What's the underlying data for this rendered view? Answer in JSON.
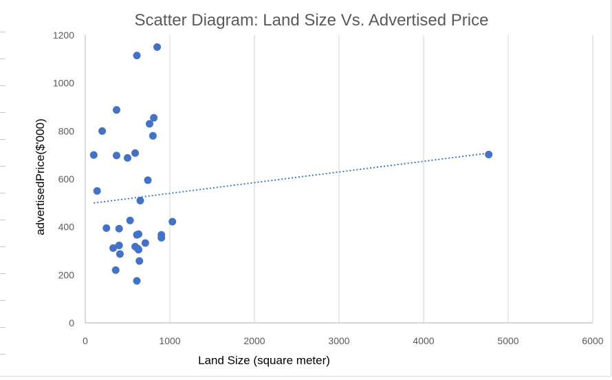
{
  "chart_data": {
    "type": "scatter",
    "title": "Scatter Diagram: Land Size Vs. Advertised Price",
    "xlabel": "Land Size (square meter)",
    "ylabel": "advertisedPrice($'000)",
    "xlim": [
      0,
      6000
    ],
    "ylim": [
      0,
      1200
    ],
    "x_ticks": [
      0,
      1000,
      2000,
      3000,
      4000,
      5000,
      6000
    ],
    "y_ticks": [
      0,
      200,
      400,
      600,
      800,
      1000,
      1200
    ],
    "x_tick_labels": [
      "0",
      "1000",
      "2000",
      "3000",
      "4000",
      "5000",
      "6000"
    ],
    "y_tick_labels": [
      "0",
      "200",
      "400",
      "600",
      "800",
      "1000",
      "1200"
    ],
    "grid": {
      "vertical": true,
      "horizontal": false
    },
    "legend": "none",
    "marker_color": "#4472c4",
    "trendline": {
      "type": "linear",
      "style": "dotted",
      "color": "#4472c4",
      "x_start": 100,
      "y_start": 500,
      "x_end": 4770,
      "y_end": 708
    },
    "series": [
      {
        "name": "advertised price",
        "points": [
          {
            "x": 100,
            "y": 700
          },
          {
            "x": 140,
            "y": 550
          },
          {
            "x": 200,
            "y": 800
          },
          {
            "x": 250,
            "y": 395
          },
          {
            "x": 330,
            "y": 312
          },
          {
            "x": 360,
            "y": 220
          },
          {
            "x": 370,
            "y": 888
          },
          {
            "x": 370,
            "y": 698
          },
          {
            "x": 400,
            "y": 393
          },
          {
            "x": 400,
            "y": 323
          },
          {
            "x": 410,
            "y": 287
          },
          {
            "x": 500,
            "y": 688
          },
          {
            "x": 530,
            "y": 427
          },
          {
            "x": 590,
            "y": 708
          },
          {
            "x": 590,
            "y": 318
          },
          {
            "x": 610,
            "y": 175
          },
          {
            "x": 610,
            "y": 367
          },
          {
            "x": 610,
            "y": 1115
          },
          {
            "x": 620,
            "y": 310
          },
          {
            "x": 630,
            "y": 305
          },
          {
            "x": 630,
            "y": 370
          },
          {
            "x": 640,
            "y": 258
          },
          {
            "x": 650,
            "y": 510
          },
          {
            "x": 710,
            "y": 333
          },
          {
            "x": 740,
            "y": 595
          },
          {
            "x": 760,
            "y": 830
          },
          {
            "x": 800,
            "y": 780
          },
          {
            "x": 810,
            "y": 855
          },
          {
            "x": 850,
            "y": 1150
          },
          {
            "x": 900,
            "y": 367
          },
          {
            "x": 900,
            "y": 355
          },
          {
            "x": 1030,
            "y": 422
          },
          {
            "x": 4770,
            "y": 702
          }
        ]
      }
    ]
  }
}
